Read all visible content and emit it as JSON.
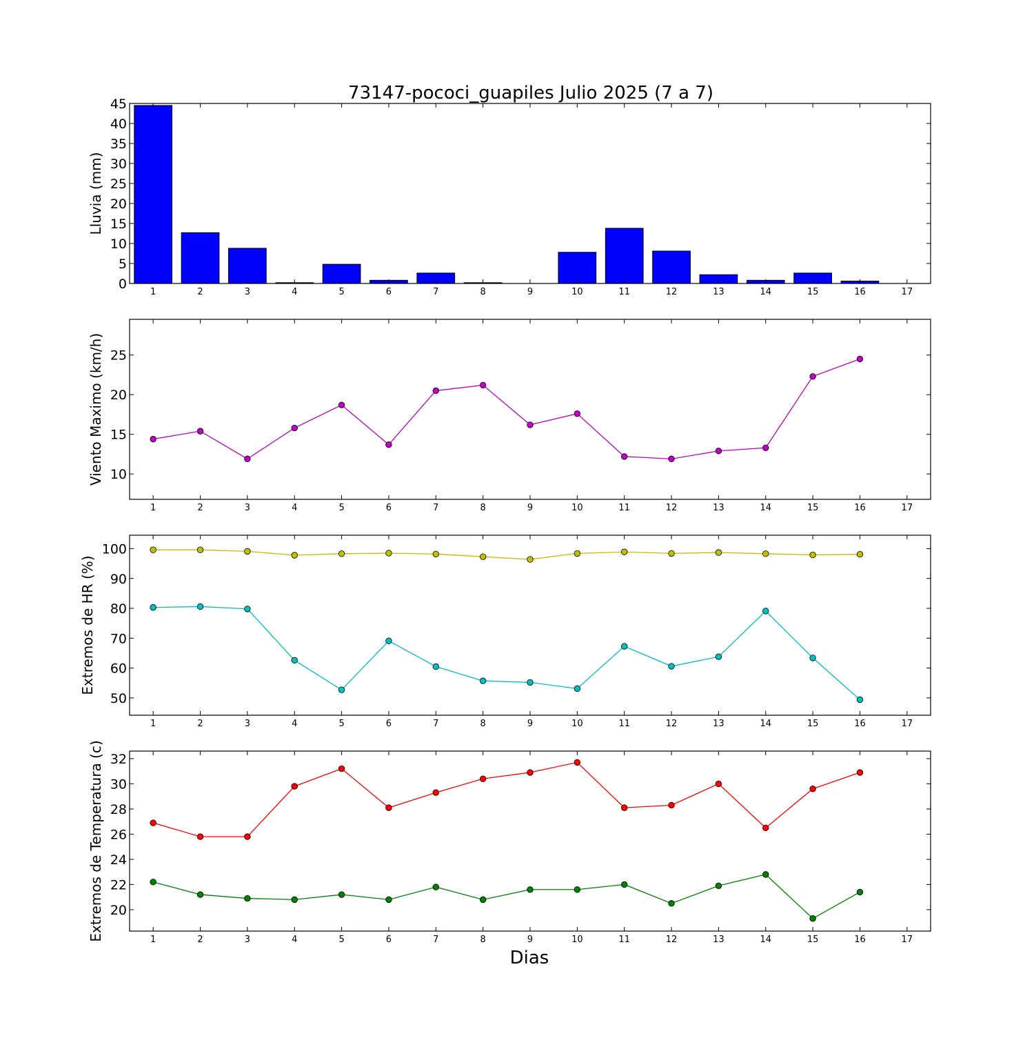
{
  "title": "73147-pococi_guapiles Julio 2025  (7 a 7)",
  "xlabel": "Dias",
  "chart_data": [
    {
      "type": "bar",
      "ylabel": "Lluvia (mm)",
      "x": [
        1,
        2,
        3,
        4,
        5,
        6,
        7,
        8,
        9,
        10,
        11,
        12,
        13,
        14,
        15,
        16
      ],
      "xticks": [
        1,
        2,
        3,
        4,
        5,
        6,
        7,
        8,
        9,
        10,
        11,
        12,
        13,
        14,
        15,
        16,
        17
      ],
      "xlim": [
        0.5,
        17.5
      ],
      "ylim": [
        0,
        45
      ],
      "yticks": [
        0,
        5,
        10,
        15,
        20,
        25,
        30,
        35,
        40,
        45
      ],
      "series": [
        {
          "color": "#0000ff",
          "values": [
            44.5,
            12.7,
            8.8,
            0.2,
            4.8,
            0.8,
            2.6,
            0.2,
            0.0,
            7.8,
            13.8,
            8.1,
            2.2,
            0.8,
            2.6,
            0.6
          ]
        }
      ]
    },
    {
      "type": "line",
      "ylabel": "Viento Maximo (km/h)",
      "x": [
        1,
        2,
        3,
        4,
        5,
        6,
        7,
        8,
        9,
        10,
        11,
        12,
        13,
        14,
        15,
        16
      ],
      "xticks": [
        1,
        2,
        3,
        4,
        5,
        6,
        7,
        8,
        9,
        10,
        11,
        12,
        13,
        14,
        15,
        16,
        17
      ],
      "xlim": [
        0.5,
        17.5
      ],
      "ylim": [
        6.8,
        29.5
      ],
      "yticks": [
        10,
        15,
        20,
        25
      ],
      "series": [
        {
          "color": "#bf00bf",
          "values": [
            14.4,
            15.4,
            11.9,
            15.8,
            18.7,
            13.7,
            20.5,
            21.2,
            16.2,
            17.6,
            12.2,
            11.9,
            12.9,
            13.3,
            22.3,
            24.5
          ]
        }
      ]
    },
    {
      "type": "line",
      "ylabel": "Extremos de HR (%)",
      "x": [
        1,
        2,
        3,
        4,
        5,
        6,
        7,
        8,
        9,
        10,
        11,
        12,
        13,
        14,
        15,
        16
      ],
      "xticks": [
        1,
        2,
        3,
        4,
        5,
        6,
        7,
        8,
        9,
        10,
        11,
        12,
        13,
        14,
        15,
        16,
        17
      ],
      "xlim": [
        0.5,
        17.5
      ],
      "ylim": [
        44.2,
        104.5
      ],
      "yticks": [
        50,
        60,
        70,
        80,
        90,
        100
      ],
      "series": [
        {
          "color": "#bfbf00",
          "values": [
            99.6,
            99.6,
            99.1,
            97.8,
            98.3,
            98.5,
            98.2,
            97.3,
            96.4,
            98.4,
            98.9,
            98.4,
            98.7,
            98.3,
            97.9,
            98.1
          ]
        },
        {
          "color": "#00bfbf",
          "values": [
            80.3,
            80.6,
            79.8,
            62.6,
            52.7,
            69.1,
            60.5,
            55.7,
            55.2,
            53.1,
            67.3,
            60.6,
            63.8,
            79.1,
            63.4,
            49.4
          ]
        }
      ]
    },
    {
      "type": "line",
      "ylabel": "Extremos de Temperatura (c)",
      "x": [
        1,
        2,
        3,
        4,
        5,
        6,
        7,
        8,
        9,
        10,
        11,
        12,
        13,
        14,
        15,
        16
      ],
      "xticks": [
        1,
        2,
        3,
        4,
        5,
        6,
        7,
        8,
        9,
        10,
        11,
        12,
        13,
        14,
        15,
        16,
        17
      ],
      "xlim": [
        0.5,
        17.5
      ],
      "ylim": [
        18.3,
        32.6
      ],
      "yticks": [
        20,
        22,
        24,
        26,
        28,
        30,
        32
      ],
      "series": [
        {
          "color": "#ff0000",
          "values": [
            26.9,
            25.8,
            25.8,
            29.8,
            31.2,
            28.1,
            29.3,
            30.4,
            30.9,
            31.7,
            28.1,
            28.3,
            30.0,
            26.5,
            29.6,
            30.9
          ]
        },
        {
          "color": "#008000",
          "values": [
            22.2,
            21.2,
            20.9,
            20.8,
            21.2,
            20.8,
            21.8,
            20.8,
            21.6,
            21.6,
            22.0,
            20.5,
            21.9,
            22.8,
            19.3,
            21.4
          ]
        }
      ]
    }
  ]
}
